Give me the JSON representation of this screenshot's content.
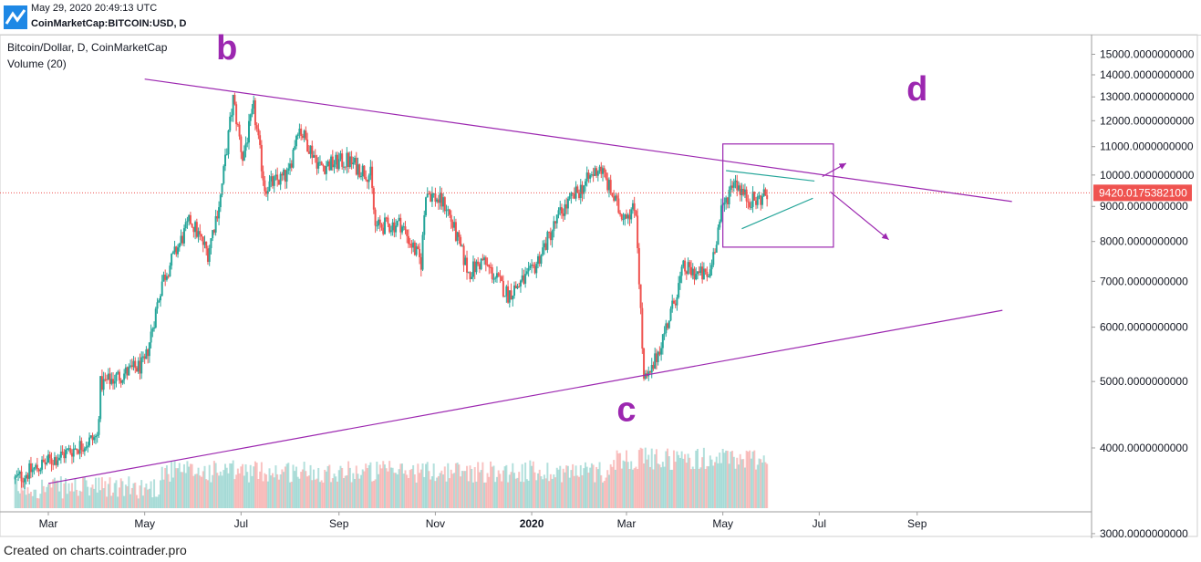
{
  "header": {
    "datetime": "May 29, 2020 20:49:13 UTC",
    "symbol": "CoinMarketCap:BITCOIN:USD, D"
  },
  "legend": {
    "instrument": "Bitcoin/Dollar, D, CoinMarketCap",
    "volume": "Volume (20)"
  },
  "footer": {
    "credit": "Created on charts.cointrader.pro"
  },
  "colors": {
    "up": "#26a69a",
    "down": "#ef5350",
    "annotation": "#9c27b0",
    "accent": "#26a69a",
    "price_tag": "#ef5350"
  },
  "chart_data": {
    "type": "candlestick",
    "y_axis": {
      "scale": "log",
      "ticks": [
        "15000.0000000000",
        "14000.0000000000",
        "13000.0000000000",
        "12000.0000000000",
        "11000.0000000000",
        "10000.0000000000",
        "9000.0000000000",
        "8000.0000000000",
        "7000.0000000000",
        "6000.0000000000",
        "5000.0000000000",
        "4000.0000000000",
        "3000.0000000000"
      ],
      "tick_values": [
        15000,
        14000,
        13000,
        12000,
        11000,
        10000,
        9000,
        8000,
        7000,
        6000,
        5000,
        4000,
        3000
      ]
    },
    "x_axis": {
      "ticks": [
        "Mar",
        "May",
        "Jul",
        "Sep",
        "Nov",
        "2020",
        "Mar",
        "May",
        "Jul",
        "Sep"
      ],
      "tick_dates": [
        "2019-03-01",
        "2019-05-01",
        "2019-07-01",
        "2019-09-01",
        "2019-11-01",
        "2020-01-01",
        "2020-03-01",
        "2020-05-01",
        "2020-07-01",
        "2020-09-01"
      ]
    },
    "last_price": "9420.0175382100",
    "last_price_value": 9420.02,
    "price_path": [
      [
        "2019-02-08",
        3600
      ],
      [
        "2019-03-01",
        3820
      ],
      [
        "2019-04-01",
        4150
      ],
      [
        "2019-04-03",
        4950
      ],
      [
        "2019-05-01",
        5300
      ],
      [
        "2019-05-12",
        7000
      ],
      [
        "2019-05-30",
        8600
      ],
      [
        "2019-06-10",
        7700
      ],
      [
        "2019-06-18",
        9300
      ],
      [
        "2019-06-26",
        12900
      ],
      [
        "2019-07-02",
        10600
      ],
      [
        "2019-07-09",
        12500
      ],
      [
        "2019-07-16",
        9600
      ],
      [
        "2019-07-31",
        10000
      ],
      [
        "2019-08-06",
        11800
      ],
      [
        "2019-08-20",
        10300
      ],
      [
        "2019-09-06",
        10500
      ],
      [
        "2019-09-21",
        10000
      ],
      [
        "2019-09-24",
        8400
      ],
      [
        "2019-10-10",
        8500
      ],
      [
        "2019-10-23",
        7450
      ],
      [
        "2019-10-26",
        9500
      ],
      [
        "2019-11-08",
        9000
      ],
      [
        "2019-11-22",
        7200
      ],
      [
        "2019-12-01",
        7500
      ],
      [
        "2019-12-17",
        6700
      ],
      [
        "2020-01-01",
        7200
      ],
      [
        "2020-01-19",
        8800
      ],
      [
        "2020-02-13",
        10300
      ],
      [
        "2020-02-26",
        8800
      ],
      [
        "2020-03-07",
        8900
      ],
      [
        "2020-03-12",
        5000
      ],
      [
        "2020-03-16",
        5100
      ],
      [
        "2020-03-30",
        6400
      ],
      [
        "2020-04-06",
        7300
      ],
      [
        "2020-04-22",
        7100
      ],
      [
        "2020-04-30",
        8800
      ],
      [
        "2020-05-08",
        9900
      ],
      [
        "2020-05-15",
        9300
      ],
      [
        "2020-05-22",
        9150
      ],
      [
        "2020-05-29",
        9420
      ]
    ],
    "trendlines": [
      {
        "name": "upper",
        "from": [
          "2019-05-01",
          13800
        ],
        "to": [
          "2020-10-31",
          9150
        ]
      },
      {
        "name": "lower",
        "from": [
          "2019-03-01",
          3550
        ],
        "to": [
          "2020-10-25",
          6350
        ]
      }
    ],
    "labels": [
      "b",
      "c",
      "d"
    ]
  }
}
